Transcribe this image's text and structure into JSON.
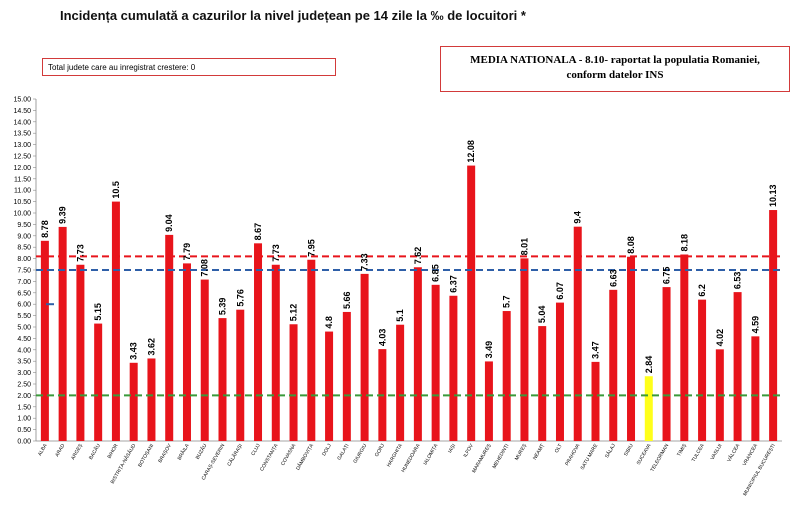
{
  "title": "Incidența cumulată a cazurilor la nivel județean pe 14 zile la ‰ de locuitori *",
  "info_box": {
    "text": "Total judete care au inregistrat crestere: 0"
  },
  "national_box": {
    "line1": "MEDIA NATIONALA - 8.10-  raportat la populatia Romaniei,",
    "line2": "conform datelor INS"
  },
  "colors": {
    "bar": "#e8141b",
    "highlight_bar": "#ffff1a",
    "ref_red": "#e8141b",
    "ref_blue": "#2e5fa8",
    "ref_green": "#3a9a3a"
  },
  "chart_data": {
    "type": "bar",
    "categories": [
      "ALBA",
      "ARAD",
      "ARGEȘ",
      "BACĂU",
      "BIHOR",
      "BISTRIȚA-NĂSĂUD",
      "BOTOȘANI",
      "BRAȘOV",
      "BRĂILA",
      "BUZĂU",
      "CARAȘ-SEVERIN",
      "CĂLĂRAȘI",
      "CLUJ",
      "CONSTANȚA",
      "COVASNA",
      "DÂMBOVIȚA",
      "DOLJ",
      "GALAȚI",
      "GIURGIU",
      "GORJ",
      "HARGHITA",
      "HUNEDOARA",
      "IALOMIȚA",
      "IAȘI",
      "ILFOV",
      "MARAMUREȘ",
      "MEHEDINȚI",
      "MUREȘ",
      "NEAMȚ",
      "OLT",
      "PRAHOVA",
      "SATU MARE",
      "SĂLAJ",
      "SIBIU",
      "SUCEAVA",
      "TELEORMAN",
      "TIMIȘ",
      "TULCEA",
      "VASLUI",
      "VÂLCEA",
      "VRANCEA",
      "MUNICIPIUL BUCUREȘTI"
    ],
    "values": [
      8.78,
      9.39,
      7.73,
      5.15,
      10.5,
      3.43,
      3.62,
      9.04,
      7.79,
      7.08,
      5.39,
      5.76,
      8.67,
      7.73,
      5.12,
      7.95,
      4.8,
      5.66,
      7.33,
      4.03,
      5.1,
      7.62,
      6.85,
      6.37,
      12.08,
      3.49,
      5.7,
      8.01,
      5.04,
      6.07,
      9.4,
      3.47,
      6.63,
      8.08,
      2.84,
      6.75,
      8.18,
      6.2,
      4.02,
      6.53,
      4.59,
      10.13
    ],
    "labels": [
      "8.78",
      "9.39",
      "7.73",
      "5.15",
      "10.5",
      "3.43",
      "3.62",
      "9.04",
      "7.79",
      "7.08",
      "5.39",
      "5.76",
      "8.67",
      "7.73",
      "5.12",
      "7.95",
      "4.8",
      "5.66",
      "7.33",
      "4.03",
      "5.1",
      "7.62",
      "6.85",
      "6.37",
      "12.08",
      "3.49",
      "5.7",
      "8.01",
      "5.04",
      "6.07",
      "9.4",
      "3.47",
      "6.63",
      "8.08",
      "2.84",
      "6.75",
      "8.18",
      "6.2",
      "4.02",
      "6.53",
      "4.59",
      "10.13"
    ],
    "highlight_index": 34,
    "ylim": [
      0,
      15
    ],
    "ytick_step": 0.5,
    "reference_lines": [
      {
        "value": 8.1,
        "color": "#e8141b"
      },
      {
        "value": 7.5,
        "color": "#2e5fa8"
      },
      {
        "value": 2.0,
        "color": "#3a9a3a"
      }
    ],
    "marker": {
      "value": 6.0,
      "color": "#2e5fa8"
    }
  }
}
